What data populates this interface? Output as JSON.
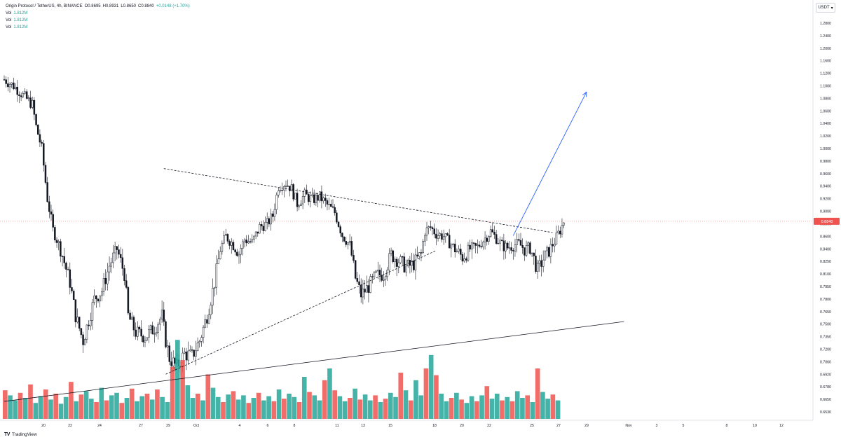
{
  "header": {
    "pair": "Origin Protocol / TetherUS, 4h, BINANCE",
    "open": "O0.8695",
    "high": "H0.8931",
    "low": "L0.8650",
    "close": "C0.8840",
    "change": "+0.0148 (+1.70%)"
  },
  "volume_rows": [
    {
      "label": "Vol",
      "value": "1.812M"
    },
    {
      "label": "Vol",
      "value": "1.812M"
    },
    {
      "label": "Vol",
      "value": "1.812M"
    }
  ],
  "currency": {
    "label": "USDT"
  },
  "footer": {
    "logo_text": "TV",
    "brand": "TradingView"
  },
  "colors": {
    "up": "#26a69a",
    "down": "#ef5350",
    "candle": "#131722",
    "arrow": "#2962ff",
    "price_tag": "#ef5350"
  },
  "chart_data": {
    "type": "candlestick",
    "price_axis_labels": [
      "1.2800",
      "1.2400",
      "1.2000",
      "1.1600",
      "1.1200",
      "1.1000",
      "1.0800",
      "1.0600",
      "1.0400",
      "1.0200",
      "1.0000",
      "0.9800",
      "0.9600",
      "0.9400",
      "0.9200",
      "0.9000",
      "0.8800",
      "0.8600",
      "0.8400",
      "0.8250",
      "0.8100",
      "0.7950",
      "0.7800",
      "0.7650",
      "0.7500",
      "0.7350",
      "0.7200",
      "0.7060",
      "0.6920",
      "0.6780",
      "0.6650",
      "0.6530"
    ],
    "current_price": "0.8840",
    "time_labels": [
      "20",
      "22",
      "24",
      "27",
      "29",
      "Oct",
      "4",
      "6",
      "8",
      "11",
      "13",
      "15",
      "18",
      "20",
      "22",
      "25",
      "27",
      "29",
      "Nov",
      "3",
      "5",
      "8",
      "10",
      "12"
    ],
    "price_path": [
      [
        0,
        1.11
      ],
      [
        5,
        1.1
      ],
      [
        10,
        1.085
      ],
      [
        15,
        1.07
      ],
      [
        17,
        1.035
      ],
      [
        20,
        1.0
      ],
      [
        23,
        0.92
      ],
      [
        26,
        0.87
      ],
      [
        30,
        0.84
      ],
      [
        35,
        0.8
      ],
      [
        38,
        0.76
      ],
      [
        42,
        0.73
      ],
      [
        48,
        0.78
      ],
      [
        52,
        0.79
      ],
      [
        56,
        0.82
      ],
      [
        60,
        0.84
      ],
      [
        64,
        0.81
      ],
      [
        66,
        0.76
      ],
      [
        70,
        0.74
      ],
      [
        75,
        0.735
      ],
      [
        80,
        0.745
      ],
      [
        84,
        0.76
      ],
      [
        86,
        0.73
      ],
      [
        88,
        0.71
      ],
      [
        92,
        0.7
      ],
      [
        96,
        0.715
      ],
      [
        100,
        0.712
      ],
      [
        104,
        0.73
      ],
      [
        108,
        0.76
      ],
      [
        112,
        0.8
      ],
      [
        115,
        0.84
      ],
      [
        118,
        0.86
      ],
      [
        121,
        0.85
      ],
      [
        125,
        0.835
      ],
      [
        128,
        0.855
      ],
      [
        132,
        0.85
      ],
      [
        136,
        0.875
      ],
      [
        140,
        0.88
      ],
      [
        143,
        0.893
      ],
      [
        146,
        0.94
      ],
      [
        150,
        0.945
      ],
      [
        153,
        0.936
      ],
      [
        156,
        0.912
      ],
      [
        160,
        0.926
      ],
      [
        164,
        0.918
      ],
      [
        168,
        0.923
      ],
      [
        172,
        0.91
      ],
      [
        176,
        0.898
      ],
      [
        180,
        0.862
      ],
      [
        184,
        0.846
      ],
      [
        187,
        0.805
      ],
      [
        190,
        0.785
      ],
      [
        194,
        0.795
      ],
      [
        198,
        0.808
      ],
      [
        202,
        0.81
      ],
      [
        206,
        0.833
      ],
      [
        210,
        0.826
      ],
      [
        214,
        0.818
      ],
      [
        218,
        0.822
      ],
      [
        222,
        0.834
      ],
      [
        224,
        0.868
      ],
      [
        227,
        0.874
      ],
      [
        230,
        0.864
      ],
      [
        234,
        0.86
      ],
      [
        237,
        0.85
      ],
      [
        240,
        0.84
      ],
      [
        244,
        0.83
      ],
      [
        248,
        0.84
      ],
      [
        252,
        0.843
      ],
      [
        256,
        0.857
      ],
      [
        259,
        0.868
      ],
      [
        262,
        0.857
      ],
      [
        265,
        0.846
      ],
      [
        268,
        0.842
      ],
      [
        271,
        0.846
      ],
      [
        274,
        0.848
      ],
      [
        277,
        0.84
      ],
      [
        280,
        0.842
      ],
      [
        284,
        0.814
      ],
      [
        287,
        0.828
      ],
      [
        290,
        0.838
      ],
      [
        293,
        0.852
      ],
      [
        296,
        0.87
      ],
      [
        298,
        0.884
      ]
    ],
    "volume": [
      0.34,
      0.28,
      0.22,
      0.31,
      0.25,
      0.41,
      0.19,
      0.27,
      0.35,
      0.23,
      0.3,
      0.18,
      0.26,
      0.44,
      0.21,
      0.29,
      0.33,
      0.24,
      0.2,
      0.37,
      0.22,
      0.28,
      0.31,
      0.19,
      0.25,
      0.36,
      0.21,
      0.27,
      0.3,
      0.23,
      0.35,
      0.26,
      0.2,
      0.62,
      0.94,
      0.7,
      0.4,
      0.25,
      0.3,
      0.22,
      0.53,
      0.37,
      0.26,
      0.2,
      0.29,
      0.33,
      0.23,
      0.28,
      0.19,
      0.25,
      0.31,
      0.22,
      0.27,
      0.21,
      0.35,
      0.24,
      0.3,
      0.26,
      0.2,
      0.5,
      0.32,
      0.28,
      0.22,
      0.46,
      0.6,
      0.34,
      0.27,
      0.21,
      0.25,
      0.36,
      0.23,
      0.29,
      0.22,
      0.28,
      0.2,
      0.24,
      0.31,
      0.26,
      0.55,
      0.34,
      0.22,
      0.46,
      0.28,
      0.6,
      0.76,
      0.52,
      0.3,
      0.21,
      0.25,
      0.31,
      0.23,
      0.19,
      0.27,
      0.21,
      0.28,
      0.39,
      0.24,
      0.3,
      0.22,
      0.26,
      0.21,
      0.33,
      0.25,
      0.28,
      0.2,
      0.6,
      0.32,
      0.24,
      0.29,
      0.22
    ],
    "trendlines": [
      {
        "style": "dashed",
        "from": [
          86,
          0.692
        ],
        "to": [
          230,
          0.838
        ]
      },
      {
        "style": "dashed",
        "from": [
          85,
          0.968
        ],
        "to": [
          292,
          0.866
        ]
      },
      {
        "style": "solid",
        "from": [
          0,
          0.663
        ],
        "to": [
          330,
          0.753
        ]
      },
      {
        "style": "arrow",
        "from": [
          271,
          0.861
        ],
        "to": [
          310,
          1.09
        ]
      }
    ],
    "grid": false,
    "legend_position": "top-left"
  }
}
